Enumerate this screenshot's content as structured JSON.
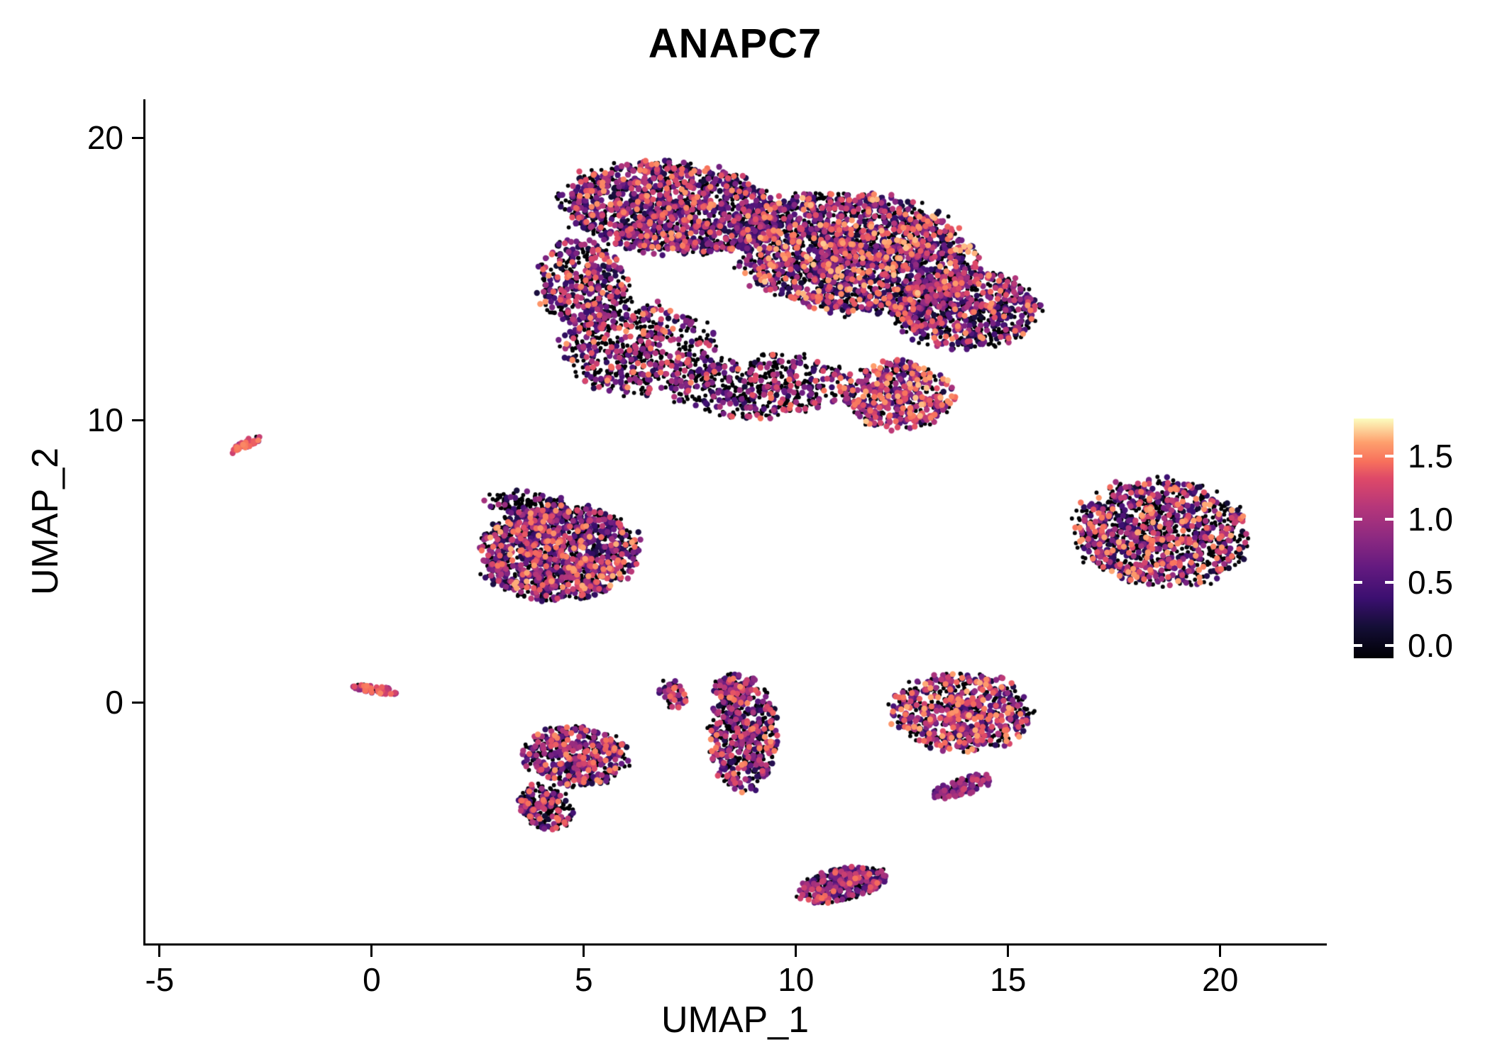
{
  "title": "ANAPC7",
  "axes": {
    "xlabel": "UMAP_1",
    "ylabel": "UMAP_2",
    "x_tick_labels": [
      "-5",
      "0",
      "5",
      "10",
      "15",
      "20"
    ],
    "y_tick_labels": [
      "0",
      "10",
      "20"
    ]
  },
  "colorbar": {
    "domain": [
      -0.1,
      1.8
    ],
    "ticks": [
      {
        "value": 1.5,
        "label": "1.5"
      },
      {
        "value": 1.0,
        "label": "1.0"
      },
      {
        "value": 0.5,
        "label": "0.5"
      },
      {
        "value": 0.0,
        "label": "0.0"
      }
    ]
  },
  "chart_data": {
    "type": "scatter",
    "title": "ANAPC7",
    "xlabel": "UMAP_1",
    "ylabel": "UMAP_2",
    "xlim": [
      -5.35,
      22.48
    ],
    "ylim": [
      -8.54,
      21.36
    ],
    "x_tick_values": [
      -5,
      0,
      5,
      10,
      15,
      20
    ],
    "y_tick_values": [
      0,
      10,
      20
    ],
    "grid": false,
    "legend_position": "right",
    "color_scale_name": "magma",
    "color_domain": [
      0,
      1.8
    ],
    "colormap_stops": [
      [
        0.0,
        "#000004"
      ],
      [
        0.13,
        "#140e36"
      ],
      [
        0.25,
        "#3b0f70"
      ],
      [
        0.38,
        "#641a80"
      ],
      [
        0.5,
        "#8c2981"
      ],
      [
        0.63,
        "#b5367a"
      ],
      [
        0.75,
        "#de4968"
      ],
      [
        0.82,
        "#f7705c"
      ],
      [
        0.9,
        "#fe9f6d"
      ],
      [
        1.0,
        "#fcfdbf"
      ]
    ],
    "total_points": 12205,
    "clusters": [
      {
        "name": "main-top-left",
        "cx": 7.0,
        "cy": 17.5,
        "rx": 2.5,
        "ry": 1.6,
        "rot": -8,
        "n": 1500,
        "p0": 0.4,
        "vmin": 0.2,
        "vmax": 1.6,
        "vpow": 1.4
      },
      {
        "name": "main-top-right",
        "cx": 11.4,
        "cy": 15.9,
        "rx": 2.9,
        "ry": 2.1,
        "rot": -15,
        "n": 2300,
        "p0": 0.42,
        "vmin": 0.2,
        "vmax": 1.7,
        "vpow": 1.25
      },
      {
        "name": "main-right-lobe",
        "cx": 14.0,
        "cy": 13.9,
        "rx": 1.7,
        "ry": 1.4,
        "rot": 0,
        "n": 800,
        "p0": 0.46,
        "vmin": 0.2,
        "vmax": 1.6,
        "vpow": 1.2
      },
      {
        "name": "main-left-arm",
        "cx": 5.0,
        "cy": 14.8,
        "rx": 1.1,
        "ry": 1.6,
        "rot": 10,
        "n": 420,
        "p0": 0.42,
        "vmin": 0.2,
        "vmax": 1.6,
        "vpow": 1.1
      },
      {
        "name": "main-lower-left",
        "cx": 6.3,
        "cy": 12.5,
        "rx": 1.8,
        "ry": 1.6,
        "rot": 0,
        "n": 620,
        "p0": 0.58,
        "vmin": 0.2,
        "vmax": 1.6,
        "vpow": 1.0
      },
      {
        "name": "main-lower-band",
        "cx": 9.2,
        "cy": 11.2,
        "rx": 2.1,
        "ry": 1.1,
        "rot": 5,
        "n": 520,
        "p0": 0.62,
        "vmin": 0.2,
        "vmax": 1.5,
        "vpow": 1.1
      },
      {
        "name": "main-lower-right",
        "cx": 12.4,
        "cy": 10.9,
        "rx": 1.3,
        "ry": 1.2,
        "rot": 0,
        "n": 520,
        "p0": 0.38,
        "vmin": 0.25,
        "vmax": 1.7,
        "vpow": 0.85
      },
      {
        "name": "streak-left",
        "cx": -2.95,
        "cy": 9.15,
        "rx": 0.5,
        "ry": 0.12,
        "rot": 38,
        "n": 45,
        "p0": 0.06,
        "vmin": 0.8,
        "vmax": 1.6,
        "vpow": 1.0
      },
      {
        "name": "mid-left",
        "cx": 4.4,
        "cy": 5.3,
        "rx": 1.85,
        "ry": 1.65,
        "rot": 10,
        "n": 1400,
        "p0": 0.42,
        "vmin": 0.2,
        "vmax": 1.65,
        "vpow": 1.3
      },
      {
        "name": "mid-left-top-fringe",
        "cx": 3.7,
        "cy": 7.0,
        "rx": 1.0,
        "ry": 0.5,
        "rot": -10,
        "n": 140,
        "p0": 0.72,
        "vmin": 0.2,
        "vmax": 1.2,
        "vpow": 1.4
      },
      {
        "name": "right",
        "cx": 18.6,
        "cy": 6.0,
        "rx": 2.05,
        "ry": 1.85,
        "rot": -20,
        "n": 1200,
        "p0": 0.5,
        "vmin": 0.2,
        "vmax": 1.65,
        "vpow": 1.1
      },
      {
        "name": "streak-zero",
        "cx": 0.1,
        "cy": 0.45,
        "rx": 0.52,
        "ry": 0.14,
        "rot": -12,
        "n": 55,
        "p0": 0.08,
        "vmin": 0.8,
        "vmax": 1.6,
        "vpow": 1.0
      },
      {
        "name": "small-arc",
        "cx": 7.1,
        "cy": 0.25,
        "rx": 0.32,
        "ry": 0.55,
        "rot": 15,
        "n": 55,
        "p0": 0.35,
        "vmin": 0.3,
        "vmax": 1.5,
        "vpow": 1.0
      },
      {
        "name": "center-vertical",
        "cx": 8.75,
        "cy": -1.2,
        "rx": 0.8,
        "ry": 1.9,
        "rot": 0,
        "n": 520,
        "p0": 0.46,
        "vmin": 0.2,
        "vmax": 1.6,
        "vpow": 1.2
      },
      {
        "name": "center-vertical-top",
        "cx": 8.6,
        "cy": 0.5,
        "rx": 0.55,
        "ry": 0.5,
        "rot": 0,
        "n": 130,
        "p0": 0.5,
        "vmin": 0.2,
        "vmax": 1.5,
        "vpow": 1.2
      },
      {
        "name": "left-lower",
        "cx": 4.8,
        "cy": -1.9,
        "rx": 1.25,
        "ry": 1.05,
        "rot": -10,
        "n": 500,
        "p0": 0.46,
        "vmin": 0.2,
        "vmax": 1.6,
        "vpow": 1.1
      },
      {
        "name": "left-lower-lobe",
        "cx": 4.1,
        "cy": -3.7,
        "rx": 0.6,
        "ry": 0.85,
        "rot": 20,
        "n": 230,
        "p0": 0.5,
        "vmin": 0.2,
        "vmax": 1.5,
        "vpow": 1.3
      },
      {
        "name": "right-mid",
        "cx": 13.9,
        "cy": -0.35,
        "rx": 1.65,
        "ry": 1.35,
        "rot": -5,
        "n": 750,
        "p0": 0.45,
        "vmin": 0.2,
        "vmax": 1.65,
        "vpow": 0.95
      },
      {
        "name": "hook",
        "cx": 13.9,
        "cy": -3.0,
        "rx": 0.75,
        "ry": 0.3,
        "rot": 25,
        "n": 100,
        "p0": 0.3,
        "vmin": 0.35,
        "vmax": 1.3,
        "vpow": 1.0
      },
      {
        "name": "bottom",
        "cx": 11.1,
        "cy": -6.45,
        "rx": 1.1,
        "ry": 0.55,
        "rot": 20,
        "n": 400,
        "p0": 0.45,
        "vmin": 0.2,
        "vmax": 1.5,
        "vpow": 1.2
      }
    ]
  }
}
